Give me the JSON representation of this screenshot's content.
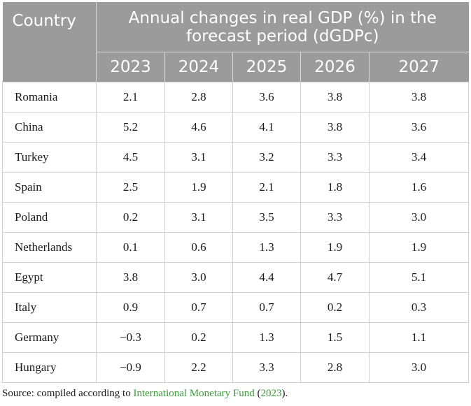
{
  "table": {
    "header_country": "Country",
    "header_group": "Annual changes in real GDP (%) in the forecast period (dGDPc)",
    "years": [
      "2023",
      "2024",
      "2025",
      "2026",
      "2027"
    ],
    "rows": [
      {
        "country": "Romania",
        "values": [
          "2.1",
          "2.8",
          "3.6",
          "3.8",
          "3.8"
        ]
      },
      {
        "country": "China",
        "values": [
          "5.2",
          "4.6",
          "4.1",
          "3.8",
          "3.6"
        ]
      },
      {
        "country": "Turkey",
        "values": [
          "4.5",
          "3.1",
          "3.2",
          "3.3",
          "3.4"
        ]
      },
      {
        "country": "Spain",
        "values": [
          "2.5",
          "1.9",
          "2.1",
          "1.8",
          "1.6"
        ]
      },
      {
        "country": "Poland",
        "values": [
          "0.2",
          "3.1",
          "3.5",
          "3.3",
          "3.0"
        ]
      },
      {
        "country": "Netherlands",
        "values": [
          "0.1",
          "0.6",
          "1.3",
          "1.9",
          "1.9"
        ]
      },
      {
        "country": "Egypt",
        "values": [
          "3.8",
          "3.0",
          "4.4",
          "4.7",
          "5.1"
        ]
      },
      {
        "country": "Italy",
        "values": [
          "0.9",
          "0.7",
          "0.7",
          "0.2",
          "0.3"
        ]
      },
      {
        "country": "Germany",
        "values": [
          "−0.3",
          "0.2",
          "1.3",
          "1.5",
          "1.1"
        ]
      },
      {
        "country": "Hungary",
        "values": [
          "−0.9",
          "2.2",
          "3.3",
          "2.8",
          "3.0"
        ]
      }
    ]
  },
  "source": {
    "prefix": "Source: compiled according to ",
    "link_text": "International Monetary Fund",
    "open_paren": " (",
    "year_link": "2023",
    "suffix": ")."
  },
  "colors": {
    "header_bg": "#9b9b9b",
    "header_text": "#ffffff",
    "link": "#3a9a3a"
  }
}
